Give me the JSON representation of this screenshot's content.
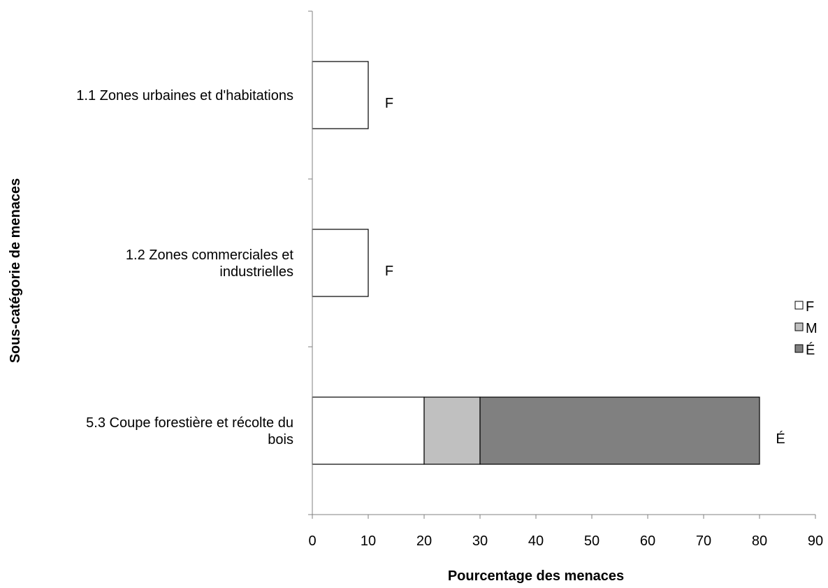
{
  "chart_data": {
    "type": "bar",
    "orientation": "horizontal",
    "stacked": true,
    "categories": [
      "1.1 Zones urbaines et d'habitations",
      "1.2 Zones commerciales et industrielles",
      "5.3 Coupe forestière et récolte du bois"
    ],
    "category_lines": [
      [
        "1.1 Zones urbaines et d'habitations"
      ],
      [
        "1.2 Zones commerciales et",
        "industrielles"
      ],
      [
        "5.3 Coupe forestière et récolte du",
        "bois"
      ]
    ],
    "series": [
      {
        "name": "F",
        "values": [
          10,
          10,
          20
        ],
        "color": "#ffffff"
      },
      {
        "name": "M",
        "values": [
          0,
          0,
          10
        ],
        "color": "#c0c0c0"
      },
      {
        "name": "É",
        "values": [
          0,
          0,
          50
        ],
        "color": "#808080"
      }
    ],
    "data_labels": [
      "F",
      "F",
      "É"
    ],
    "xlim": [
      0,
      90
    ],
    "xticks": [
      "0",
      "10",
      "20",
      "30",
      "40",
      "50",
      "60",
      "70",
      "80",
      "90"
    ],
    "xlabel": "Pourcentage des menaces",
    "ylabel": "Sous-catégorie de menaces",
    "grid": false,
    "legend_position": "right"
  }
}
